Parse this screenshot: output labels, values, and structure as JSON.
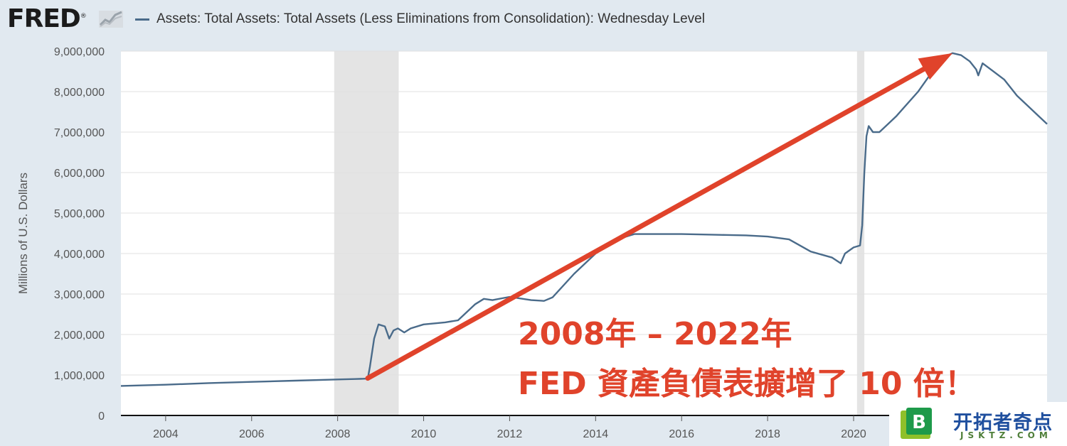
{
  "header": {
    "logo_text": "FRED",
    "logo_mark": "®",
    "logo_icon": "chart-sparkline-icon"
  },
  "chart_data": {
    "type": "line",
    "title": "",
    "series": [
      {
        "name": "Assets: Total Assets: Total Assets (Less Eliminations from Consolidation): Wednesday Level",
        "color": "#4a6b8a",
        "x": [
          2002.96,
          2004.0,
          2005.0,
          2006.0,
          2007.0,
          2008.0,
          2008.4,
          2008.7,
          2008.75,
          2008.85,
          2008.95,
          2009.1,
          2009.2,
          2009.3,
          2009.4,
          2009.55,
          2009.7,
          2010.0,
          2010.5,
          2010.8,
          2011.0,
          2011.2,
          2011.4,
          2011.6,
          2012.0,
          2012.5,
          2012.8,
          2013.0,
          2013.5,
          2014.0,
          2014.5,
          2014.9,
          2015.5,
          2016.0,
          2016.5,
          2017.0,
          2017.5,
          2018.0,
          2018.5,
          2019.0,
          2019.5,
          2019.7,
          2019.8,
          2020.0,
          2020.15,
          2020.2,
          2020.25,
          2020.3,
          2020.35,
          2020.45,
          2020.6,
          2020.8,
          2021.0,
          2021.5,
          2021.8,
          2022.0,
          2022.3,
          2022.5,
          2022.7,
          2022.85,
          2022.9,
          2023.0,
          2023.5,
          2023.8,
          2024.0,
          2024.3,
          2024.5
        ],
        "values": [
          730000,
          760000,
          800000,
          830000,
          860000,
          890000,
          900000,
          910000,
          1200000,
          1900000,
          2250000,
          2200000,
          1900000,
          2100000,
          2150000,
          2050000,
          2150000,
          2250000,
          2300000,
          2350000,
          2550000,
          2750000,
          2880000,
          2850000,
          2930000,
          2850000,
          2830000,
          2920000,
          3500000,
          4000000,
          4350000,
          4480000,
          4480000,
          4480000,
          4470000,
          4460000,
          4450000,
          4420000,
          4350000,
          4050000,
          3900000,
          3760000,
          4000000,
          4150000,
          4200000,
          4700000,
          6000000,
          6900000,
          7150000,
          7000000,
          7000000,
          7200000,
          7400000,
          8000000,
          8450000,
          8800000,
          8950000,
          8900000,
          8750000,
          8550000,
          8400000,
          8700000,
          8300000,
          7900000,
          7700000,
          7400000,
          7200000
        ]
      }
    ],
    "xlabel": "",
    "ylabel": "Millions of U.S. Dollars",
    "xlim": [
      2002.96,
      2024.5
    ],
    "ylim": [
      0,
      9000000
    ],
    "x_ticks": [
      2004,
      2006,
      2008,
      2010,
      2012,
      2014,
      2016,
      2018,
      2020
    ],
    "x_tick_labels": [
      "2004",
      "2006",
      "2008",
      "2010",
      "2012",
      "2014",
      "2016",
      "2018",
      "2020"
    ],
    "y_ticks": [
      0,
      1000000,
      2000000,
      3000000,
      4000000,
      5000000,
      6000000,
      7000000,
      8000000,
      9000000
    ],
    "y_tick_labels": [
      "0",
      "1,000,000",
      "2,000,000",
      "3,000,000",
      "4,000,000",
      "5,000,000",
      "6,000,000",
      "7,000,000",
      "8,000,000",
      "9,000,000"
    ],
    "grid": true,
    "legend": "top-left",
    "recessions": [
      {
        "start": 2007.92,
        "end": 2009.42
      },
      {
        "start": 2020.08,
        "end": 2020.25
      }
    ],
    "annotation_arrow": {
      "from": [
        2008.7,
        920000
      ],
      "to": [
        2022.3,
        8950000
      ],
      "color": "#e0432b"
    },
    "annotation_lines": [
      "2008年 – 2022年",
      "FED 資產負債表擴增了 10 倍！"
    ],
    "annotation_color": "#e0432b",
    "line_color": "#4a6b8a",
    "recession_color": "#e4e4e4"
  },
  "watermark": {
    "badge_letter": "B",
    "badge_icon": "bookmark-badge-icon",
    "title": "开拓者奇点",
    "domain": "JSKTZ.COM"
  }
}
